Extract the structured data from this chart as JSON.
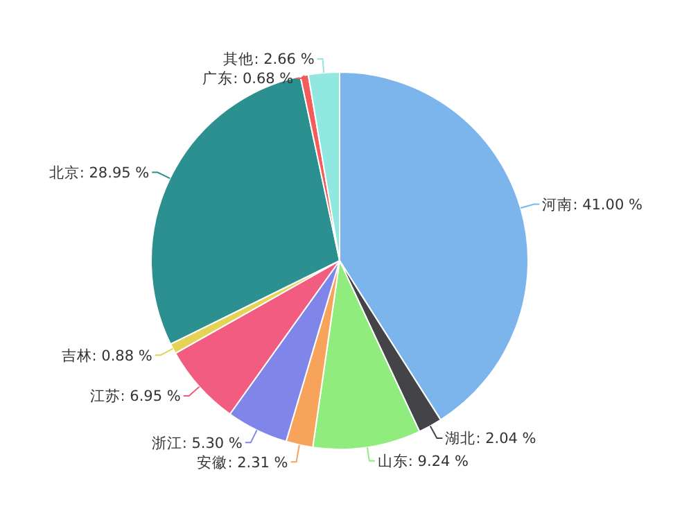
{
  "chart_data": {
    "type": "pie",
    "categories": [
      "河南",
      "湖北",
      "山东",
      "安徽",
      "浙江",
      "江苏",
      "吉林",
      "北京",
      "广东",
      "其他"
    ],
    "values": [
      41.0,
      2.04,
      9.24,
      2.31,
      5.3,
      6.95,
      0.88,
      28.95,
      0.68,
      2.66
    ],
    "value_labels": [
      ": 41.00 %",
      ": 2.04 %",
      ": 9.24 %",
      ": 2.31 %",
      ": 5.30 %",
      ": 6.95 %",
      ": 0.88 %",
      ": 28.95 %",
      ": 0.68 %",
      ": 2.66 %"
    ],
    "colors": [
      "#7cb5ec",
      "#434348",
      "#90ed7d",
      "#f7a35c",
      "#8085e9",
      "#f15c80",
      "#e4d354",
      "#2b908f",
      "#f45b5b",
      "#91e8e1"
    ]
  }
}
